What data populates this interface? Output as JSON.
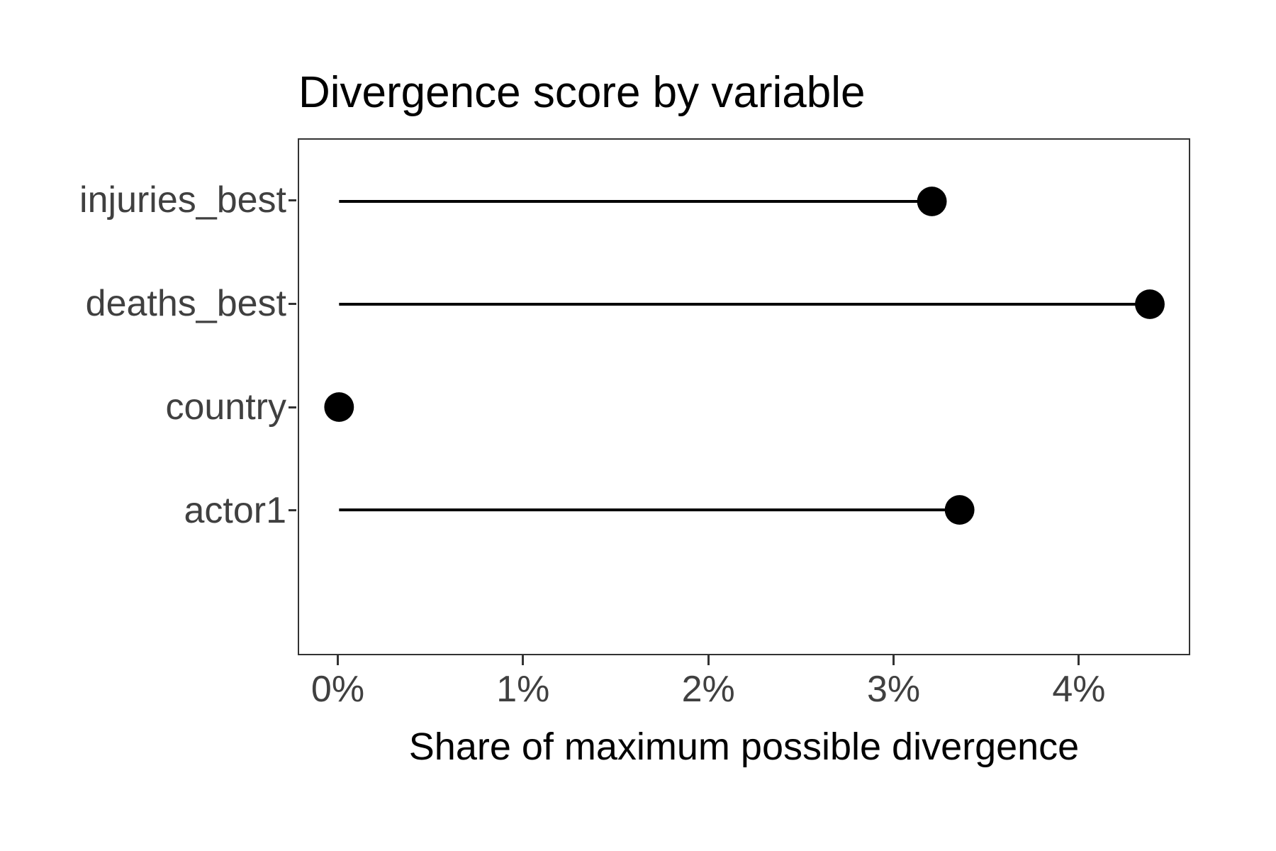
{
  "chart_data": {
    "type": "scatter",
    "variant": "lollipop",
    "orientation": "horizontal",
    "title": "Divergence score by variable",
    "xlabel": "Share of maximum possible divergence",
    "ylabel": "",
    "categories": [
      "injuries_best",
      "deaths_best",
      "country",
      "actor1"
    ],
    "values": [
      3.21,
      4.39,
      0.0,
      3.36
    ],
    "unit": "%",
    "stem_origin": 0,
    "x_ticks": [
      {
        "value": 0,
        "label": "0%"
      },
      {
        "value": 1,
        "label": "1%"
      },
      {
        "value": 2,
        "label": "2%"
      },
      {
        "value": 3,
        "label": "3%"
      },
      {
        "value": 4,
        "label": "4%"
      }
    ],
    "xlim": [
      -0.22,
      4.6
    ],
    "grid": false,
    "legend": false,
    "colors": {
      "point": "#000000",
      "stem": "#000000",
      "axis_text": "#404040",
      "axis_title": "#000000",
      "title_text": "#000000",
      "panel_border": "#333333",
      "background": "#ffffff"
    }
  }
}
